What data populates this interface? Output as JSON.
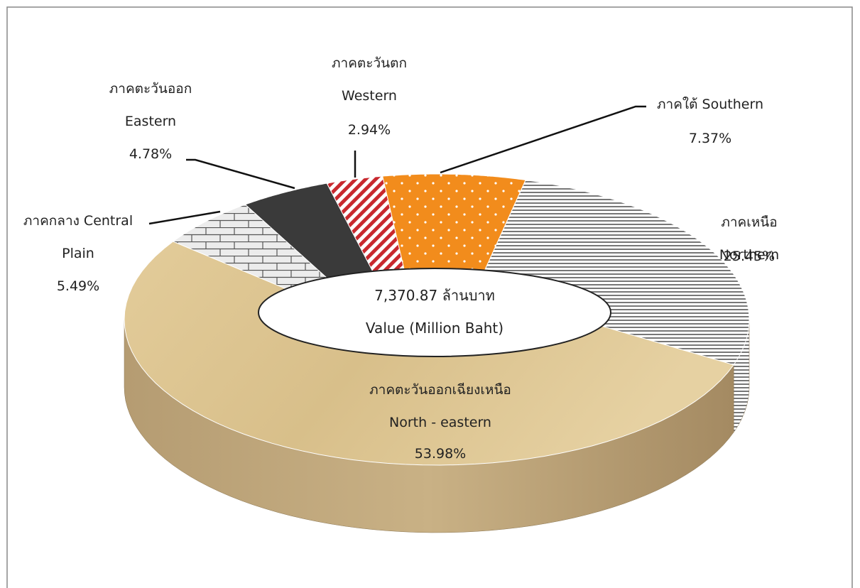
{
  "chart_data": {
    "type": "donut3d",
    "categories": [
      "ภาคใต้ Southern",
      "ภาคเหนือ Northern",
      "ภาคตะวันออกเฉียงเหนือ\nNorth - eastern",
      "ภาคกลาง Central\nPlain",
      "ภาคตะวันออก\nEastern",
      "ภาคตะวันตก\nWestern"
    ],
    "values": [
      7.37,
      25.45,
      53.98,
      5.49,
      4.78,
      2.94
    ],
    "value_labels": [
      "7.37%",
      "25.45%",
      "53.98%",
      "5.49%",
      "4.78%",
      "2.94%"
    ],
    "colors": [
      "#f28c1c",
      "#9a9a9a",
      "#d8bf8a",
      "#cfcfcf",
      "#3a3a3a",
      "#c8282e"
    ],
    "patterns": [
      "dots",
      "hlines",
      "wood",
      "bricks",
      "solid",
      "diagonal"
    ],
    "center_text": [
      "7,370.87  ล้านบาท",
      "Value  (Million Baht)"
    ]
  }
}
